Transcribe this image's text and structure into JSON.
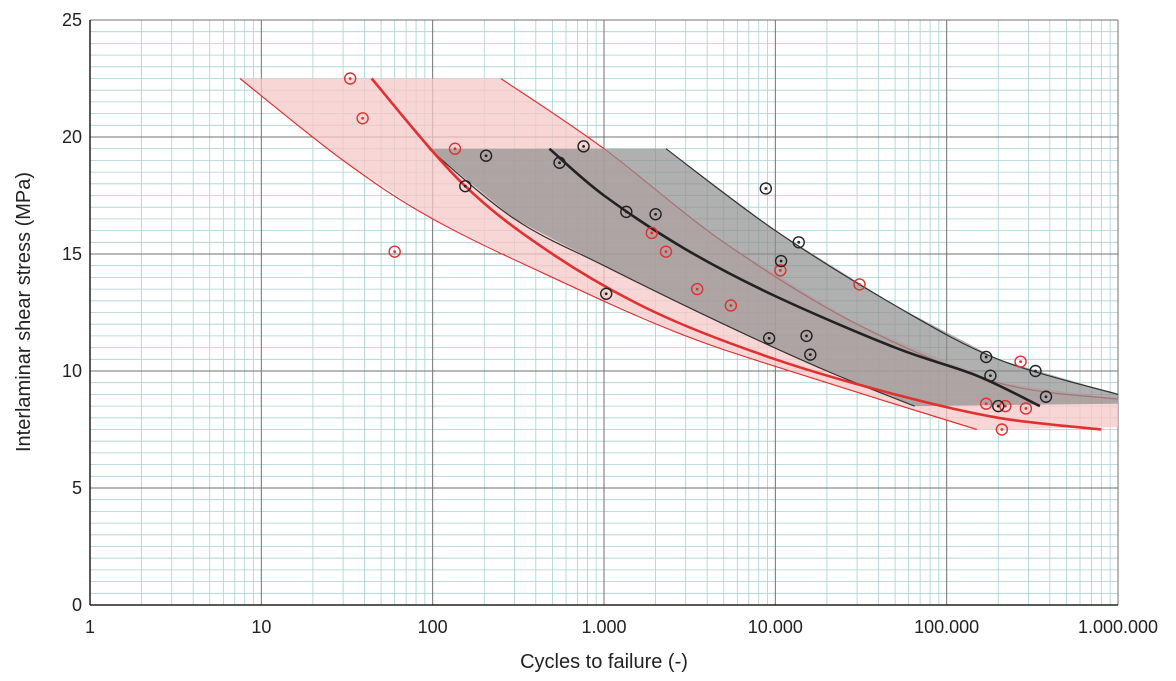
{
  "chart_data": {
    "type": "scatter",
    "xlabel": "Cycles to failure (-)",
    "ylabel": "Interlaminar shear stress (MPa)",
    "x_scale": "log",
    "xlim": [
      1,
      1000000
    ],
    "ylim": [
      0,
      25
    ],
    "x_ticks": [
      {
        "value": 1,
        "label": "1"
      },
      {
        "value": 10,
        "label": "10"
      },
      {
        "value": 100,
        "label": "100"
      },
      {
        "value": 1000,
        "label": "1.000"
      },
      {
        "value": 10000,
        "label": "10.000"
      },
      {
        "value": 100000,
        "label": "100.000"
      },
      {
        "value": 1000000,
        "label": "1.000.000"
      }
    ],
    "y_ticks": [
      {
        "value": 0,
        "label": "0"
      },
      {
        "value": 5,
        "label": "5"
      },
      {
        "value": 10,
        "label": "10"
      },
      {
        "value": 15,
        "label": "15"
      },
      {
        "value": 20,
        "label": "20"
      },
      {
        "value": 25,
        "label": "25"
      }
    ],
    "grid": true,
    "colors": {
      "red": "#e03030",
      "black": "#222222",
      "red_band": "#f7c8c8",
      "gray_band": "#8f8f8f",
      "grid_minor": "#a8d0d0",
      "grid_major": "#707070"
    },
    "series": [
      {
        "color": "red",
        "points": [
          [
            33,
            22.5
          ],
          [
            39,
            20.8
          ],
          [
            60,
            15.1
          ],
          [
            135,
            19.5
          ],
          [
            1900,
            15.9
          ],
          [
            2300,
            15.1
          ],
          [
            3500,
            13.5
          ],
          [
            5500,
            12.8
          ],
          [
            10700,
            14.3
          ],
          [
            31000,
            13.7
          ],
          [
            170000,
            8.6
          ],
          [
            210000,
            7.5
          ],
          [
            220000,
            8.5
          ],
          [
            270000,
            10.4
          ],
          [
            290000,
            8.4
          ]
        ],
        "mean_curve": [
          [
            44,
            22.5
          ],
          [
            150,
            18
          ],
          [
            500,
            15
          ],
          [
            2000,
            12.5
          ],
          [
            10000,
            10.5
          ],
          [
            50000,
            9
          ],
          [
            200000,
            8
          ],
          [
            800000,
            7.5
          ]
        ],
        "band": {
          "upper": [
            [
              250,
              22.5
            ],
            [
              1000,
              19.5
            ],
            [
              5000,
              15.5
            ],
            [
              30000,
              12
            ],
            [
              200000,
              9.5
            ],
            [
              1000000,
              8.8
            ]
          ],
          "lower": [
            [
              7.5,
              22.5
            ],
            [
              30,
              19
            ],
            [
              100,
              16.5
            ],
            [
              500,
              14
            ],
            [
              3000,
              11.5
            ],
            [
              20000,
              9.5
            ],
            [
              150000,
              7.5
            ]
          ],
          "right_edge": [
            [
              1000000,
              7.6
            ]
          ]
        }
      },
      {
        "color": "black",
        "points": [
          [
            155,
            17.9
          ],
          [
            205,
            19.2
          ],
          [
            550,
            18.9
          ],
          [
            760,
            19.6
          ],
          [
            1030,
            13.3
          ],
          [
            1350,
            16.8
          ],
          [
            2000,
            16.7
          ],
          [
            8800,
            17.8
          ],
          [
            9200,
            11.4
          ],
          [
            10800,
            14.7
          ],
          [
            13700,
            15.5
          ],
          [
            15200,
            11.5
          ],
          [
            16000,
            10.7
          ],
          [
            170000,
            10.6
          ],
          [
            180000,
            9.8
          ],
          [
            200000,
            8.5
          ],
          [
            330000,
            10.0
          ],
          [
            380000,
            8.9
          ]
        ],
        "mean_curve": [
          [
            480,
            19.5
          ],
          [
            1000,
            17.5
          ],
          [
            3000,
            15.2
          ],
          [
            10000,
            13.2
          ],
          [
            50000,
            11
          ],
          [
            150000,
            9.8
          ],
          [
            350000,
            8.5
          ]
        ],
        "band": {
          "upper": [
            [
              2300,
              19.5
            ],
            [
              10000,
              16
            ],
            [
              50000,
              12.8
            ],
            [
              200000,
              10.5
            ],
            [
              1000000,
              9
            ]
          ],
          "lower": [
            [
              95,
              19.5
            ],
            [
              300,
              16.5
            ],
            [
              1000,
              14.5
            ],
            [
              5000,
              12
            ],
            [
              20000,
              10
            ],
            [
              65000,
              8.5
            ]
          ],
          "right_edge": [
            [
              1000000,
              8.6
            ]
          ]
        }
      }
    ]
  }
}
